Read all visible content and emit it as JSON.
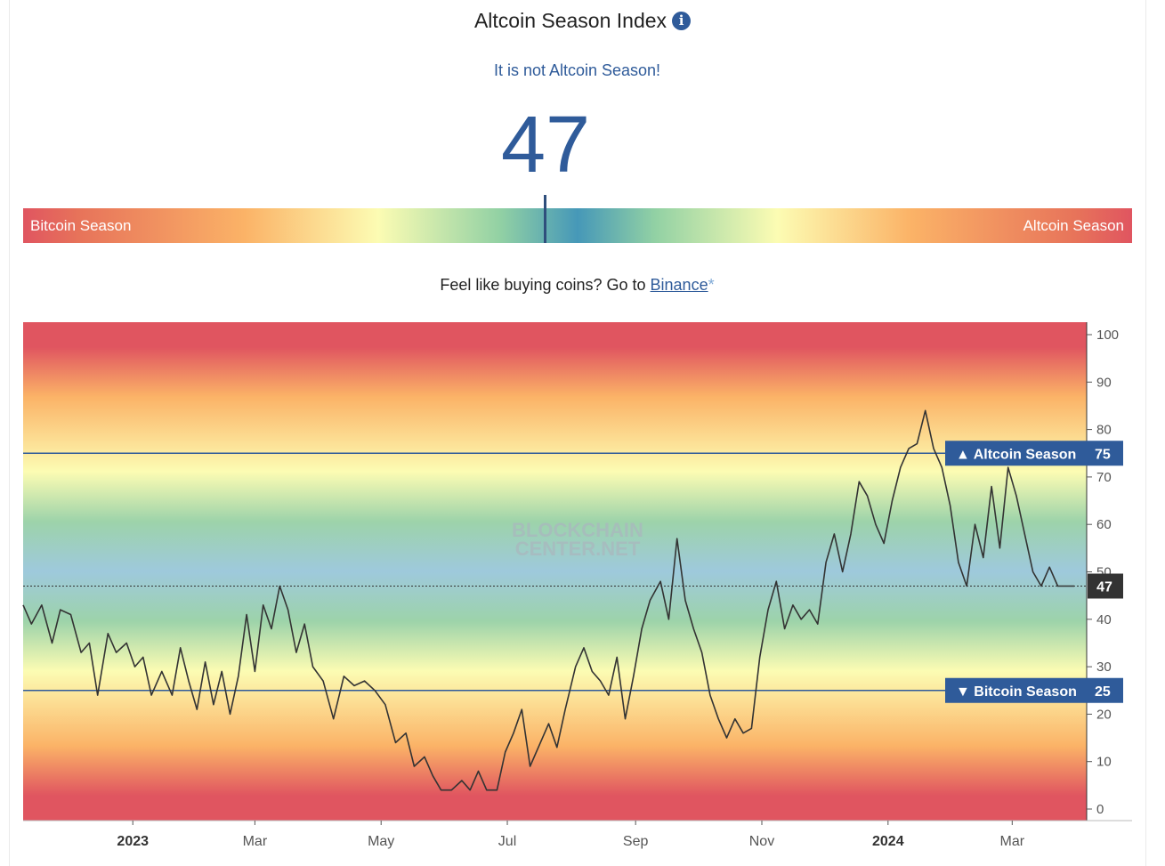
{
  "header": {
    "title": "Altcoin Season Index",
    "info_icon": "info-icon",
    "status": "It is not Altcoin Season!",
    "value": "47"
  },
  "scale": {
    "left_label": "Bitcoin Season",
    "right_label": "Altcoin Season",
    "pointer_value": 47
  },
  "promo": {
    "text": "Feel like buying coins? Go to ",
    "link": "Binance",
    "star": "*"
  },
  "colors": {
    "brand_blue": "#2f5b9a",
    "line": "#333333",
    "red": "#e05560",
    "orange": "#fbb367",
    "yellow": "#fcfcb3",
    "blue": "#9ec9dc"
  },
  "chart_data": {
    "type": "line",
    "ylim": [
      0,
      100
    ],
    "y_ticks": [
      "0",
      "10",
      "20",
      "30",
      "40",
      "50",
      "60",
      "70",
      "80",
      "90",
      "100"
    ],
    "x_ticks": [
      {
        "label": "2023",
        "date": "2023-01-01",
        "bold": true
      },
      {
        "label": "Mar",
        "date": "2023-03-01",
        "bold": false
      },
      {
        "label": "May",
        "date": "2023-05-01",
        "bold": false
      },
      {
        "label": "Jul",
        "date": "2023-07-01",
        "bold": false
      },
      {
        "label": "Sep",
        "date": "2023-09-01",
        "bold": false
      },
      {
        "label": "Nov",
        "date": "2023-11-01",
        "bold": false
      },
      {
        "label": "2024",
        "date": "2024-01-01",
        "bold": true
      },
      {
        "label": "Mar",
        "date": "2024-03-01",
        "bold": false
      }
    ],
    "x_range": [
      "2022-11-09",
      "2024-04-06"
    ],
    "grid": false,
    "watermark": [
      "BLOCKCHAIN",
      "CENTER.NET"
    ],
    "thresholds": [
      {
        "label": "▲ Altcoin Season",
        "value": 75
      },
      {
        "label": "▼ Bitcoin Season",
        "value": 25
      }
    ],
    "current": {
      "value": 47,
      "label": "47"
    },
    "series": [
      {
        "points": [
          [
            "2022-11-09",
            43
          ],
          [
            "2022-11-13",
            39
          ],
          [
            "2022-11-18",
            43
          ],
          [
            "2022-11-23",
            35
          ],
          [
            "2022-11-27",
            42
          ],
          [
            "2022-12-02",
            41
          ],
          [
            "2022-12-07",
            33
          ],
          [
            "2022-12-11",
            35
          ],
          [
            "2022-12-15",
            24
          ],
          [
            "2022-12-20",
            37
          ],
          [
            "2022-12-24",
            33
          ],
          [
            "2022-12-29",
            35
          ],
          [
            "2023-01-02",
            30
          ],
          [
            "2023-01-06",
            32
          ],
          [
            "2023-01-10",
            24
          ],
          [
            "2023-01-15",
            29
          ],
          [
            "2023-01-20",
            24
          ],
          [
            "2023-01-24",
            34
          ],
          [
            "2023-01-28",
            27
          ],
          [
            "2023-02-01",
            21
          ],
          [
            "2023-02-05",
            31
          ],
          [
            "2023-02-09",
            22
          ],
          [
            "2023-02-13",
            29
          ],
          [
            "2023-02-17",
            20
          ],
          [
            "2023-02-21",
            28
          ],
          [
            "2023-02-25",
            41
          ],
          [
            "2023-03-01",
            29
          ],
          [
            "2023-03-05",
            43
          ],
          [
            "2023-03-09",
            38
          ],
          [
            "2023-03-13",
            47
          ],
          [
            "2023-03-17",
            42
          ],
          [
            "2023-03-21",
            33
          ],
          [
            "2023-03-25",
            39
          ],
          [
            "2023-03-29",
            30
          ],
          [
            "2023-04-03",
            27
          ],
          [
            "2023-04-08",
            19
          ],
          [
            "2023-04-13",
            28
          ],
          [
            "2023-04-18",
            26
          ],
          [
            "2023-04-23",
            27
          ],
          [
            "2023-04-28",
            25
          ],
          [
            "2023-05-03",
            22
          ],
          [
            "2023-05-08",
            14
          ],
          [
            "2023-05-13",
            16
          ],
          [
            "2023-05-17",
            9
          ],
          [
            "2023-05-22",
            11
          ],
          [
            "2023-05-26",
            7
          ],
          [
            "2023-05-30",
            4
          ],
          [
            "2023-06-04",
            4
          ],
          [
            "2023-06-09",
            6
          ],
          [
            "2023-06-13",
            4
          ],
          [
            "2023-06-17",
            8
          ],
          [
            "2023-06-21",
            4
          ],
          [
            "2023-06-26",
            4
          ],
          [
            "2023-06-30",
            12
          ],
          [
            "2023-07-04",
            16
          ],
          [
            "2023-07-08",
            21
          ],
          [
            "2023-07-12",
            9
          ],
          [
            "2023-07-17",
            14
          ],
          [
            "2023-07-21",
            18
          ],
          [
            "2023-07-25",
            13
          ],
          [
            "2023-07-29",
            21
          ],
          [
            "2023-08-03",
            30
          ],
          [
            "2023-08-07",
            34
          ],
          [
            "2023-08-11",
            29
          ],
          [
            "2023-08-15",
            27
          ],
          [
            "2023-08-19",
            24
          ],
          [
            "2023-08-23",
            32
          ],
          [
            "2023-08-27",
            19
          ],
          [
            "2023-08-31",
            28
          ],
          [
            "2023-09-04",
            38
          ],
          [
            "2023-09-08",
            44
          ],
          [
            "2023-09-13",
            48
          ],
          [
            "2023-09-17",
            40
          ],
          [
            "2023-09-21",
            57
          ],
          [
            "2023-09-25",
            44
          ],
          [
            "2023-09-29",
            38
          ],
          [
            "2023-10-03",
            33
          ],
          [
            "2023-10-07",
            24
          ],
          [
            "2023-10-11",
            19
          ],
          [
            "2023-10-15",
            15
          ],
          [
            "2023-10-19",
            19
          ],
          [
            "2023-10-23",
            16
          ],
          [
            "2023-10-27",
            17
          ],
          [
            "2023-10-31",
            32
          ],
          [
            "2023-11-04",
            42
          ],
          [
            "2023-11-08",
            48
          ],
          [
            "2023-11-12",
            38
          ],
          [
            "2023-11-16",
            43
          ],
          [
            "2023-11-20",
            40
          ],
          [
            "2023-11-24",
            42
          ],
          [
            "2023-11-28",
            39
          ],
          [
            "2023-12-02",
            52
          ],
          [
            "2023-12-06",
            58
          ],
          [
            "2023-12-10",
            50
          ],
          [
            "2023-12-14",
            58
          ],
          [
            "2023-12-18",
            69
          ],
          [
            "2023-12-22",
            66
          ],
          [
            "2023-12-26",
            60
          ],
          [
            "2023-12-30",
            56
          ],
          [
            "2024-01-03",
            65
          ],
          [
            "2024-01-07",
            72
          ],
          [
            "2024-01-11",
            76
          ],
          [
            "2024-01-15",
            77
          ],
          [
            "2024-01-19",
            84
          ],
          [
            "2024-01-23",
            76
          ],
          [
            "2024-01-27",
            72
          ],
          [
            "2024-01-31",
            64
          ],
          [
            "2024-02-04",
            52
          ],
          [
            "2024-02-08",
            47
          ],
          [
            "2024-02-12",
            60
          ],
          [
            "2024-02-16",
            53
          ],
          [
            "2024-02-20",
            68
          ],
          [
            "2024-02-24",
            55
          ],
          [
            "2024-02-28",
            72
          ],
          [
            "2024-03-03",
            66
          ],
          [
            "2024-03-07",
            58
          ],
          [
            "2024-03-11",
            50
          ],
          [
            "2024-03-15",
            47
          ],
          [
            "2024-03-19",
            51
          ],
          [
            "2024-03-23",
            47
          ],
          [
            "2024-03-27",
            47
          ],
          [
            "2024-03-31",
            47
          ]
        ]
      }
    ]
  }
}
